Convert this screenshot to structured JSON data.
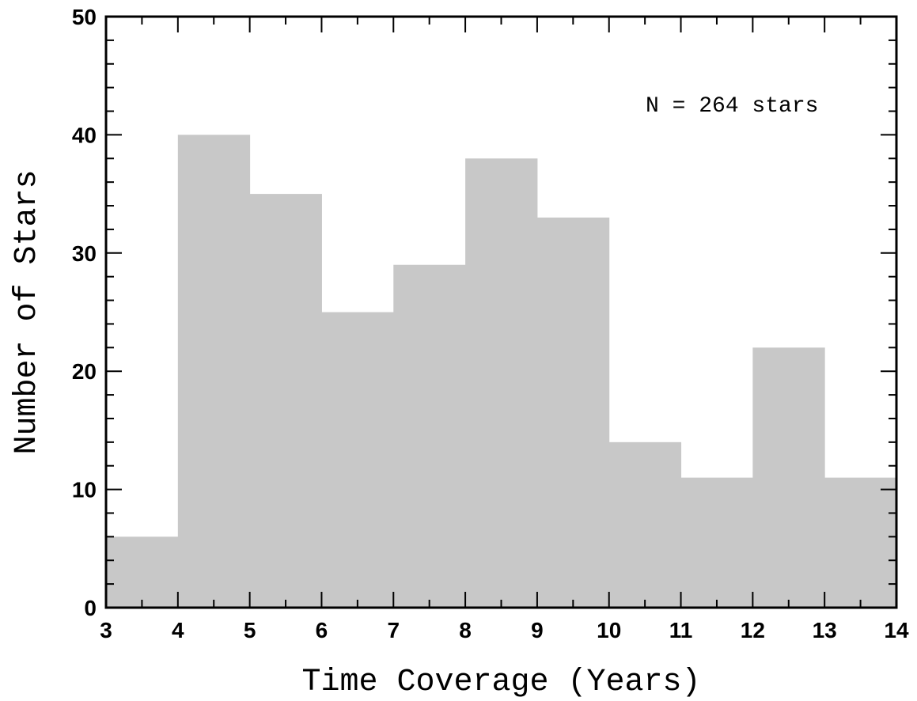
{
  "chart_data": {
    "type": "bar",
    "histogram": true,
    "bin_edges": [
      3,
      4,
      5,
      6,
      7,
      8,
      9,
      10,
      11,
      12,
      13,
      14
    ],
    "values": [
      6,
      40,
      35,
      25,
      29,
      38,
      33,
      14,
      11,
      22,
      11
    ],
    "title": "",
    "xlabel": "Time Coverage (Years)",
    "ylabel": "Number of Stars",
    "xlim": [
      3,
      14
    ],
    "ylim": [
      0,
      50
    ],
    "x_ticks": [
      3,
      4,
      5,
      6,
      7,
      8,
      9,
      10,
      11,
      12,
      13,
      14
    ],
    "y_ticks": [
      0,
      10,
      20,
      30,
      40,
      50
    ],
    "annotation": "N = 264 stars",
    "bar_color": "#c8c8c8",
    "grid": false,
    "legend": "none"
  }
}
